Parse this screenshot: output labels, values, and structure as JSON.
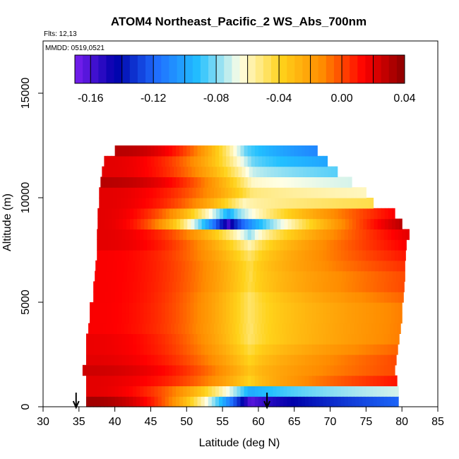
{
  "chart_data": {
    "type": "heatmap",
    "title": "ATOM4 Northeast_Pacific_2 WS_Abs_700nm",
    "annotations": {
      "flights": "Flts: 12,13",
      "dates": "MMDD: 0519,0521"
    },
    "xlabel": "Latitude (deg N)",
    "ylabel": "Altitude (m)",
    "xlim": [
      30,
      85
    ],
    "ylim": [
      0,
      17500
    ],
    "x_ticks": [
      "30",
      "35",
      "40",
      "45",
      "50",
      "55",
      "60",
      "65",
      "70",
      "75",
      "80",
      "85"
    ],
    "y_ticks": [
      "0",
      "5000",
      "10000",
      "15000"
    ],
    "colorbar": {
      "vmin": -0.17,
      "vmax": 0.04,
      "ticks": [
        "-0.16",
        "-0.12",
        "-0.08",
        "-0.04",
        "0.00",
        "0.04"
      ],
      "colors": [
        "#7a1ff0",
        "#0000aa",
        "#1f6fff",
        "#22c0ff",
        "#ffffe6",
        "#ffd21a",
        "#ff8c00",
        "#ff0000",
        "#8b0000"
      ]
    },
    "profile_markers": [
      {
        "latitude": 34.6,
        "label": "arrow"
      },
      {
        "latitude": 61.2,
        "label": "arrow"
      }
    ],
    "altitude_layers": [
      {
        "altitude": 250,
        "lat_start": 36,
        "lat_end": 79.5,
        "left_value": 0.035,
        "center_lat": 59,
        "center_value": -0.165,
        "right_value": -0.12
      },
      {
        "altitude": 750,
        "lat_start": 36,
        "lat_end": 79.5,
        "left_value": 0.02,
        "center_lat": 59,
        "center_value": -0.1,
        "right_value": -0.07
      },
      {
        "altitude": 1250,
        "lat_start": 36,
        "lat_end": 79.3,
        "left_value": 0.02,
        "center_lat": 59,
        "center_value": -0.04,
        "right_value": 0.01
      },
      {
        "altitude": 1750,
        "lat_start": 35.5,
        "lat_end": 79.0,
        "left_value": 0.025,
        "center_lat": 59,
        "center_value": -0.035,
        "right_value": 0.0
      },
      {
        "altitude": 2250,
        "lat_start": 36,
        "lat_end": 79.2,
        "left_value": 0.02,
        "center_lat": 59,
        "center_value": -0.04,
        "right_value": 0.0
      },
      {
        "altitude": 2750,
        "lat_start": 36,
        "lat_end": 79.4,
        "left_value": 0.018,
        "center_lat": 59,
        "center_value": -0.045,
        "right_value": -0.005
      },
      {
        "altitude": 3250,
        "lat_start": 36,
        "lat_end": 79.6,
        "left_value": 0.018,
        "center_lat": 59,
        "center_value": -0.05,
        "right_value": -0.01
      },
      {
        "altitude": 3750,
        "lat_start": 36.3,
        "lat_end": 79.8,
        "left_value": 0.015,
        "center_lat": 59,
        "center_value": -0.05,
        "right_value": -0.01
      },
      {
        "altitude": 4250,
        "lat_start": 36.5,
        "lat_end": 80.0,
        "left_value": 0.015,
        "center_lat": 59,
        "center_value": -0.05,
        "right_value": -0.01
      },
      {
        "altitude": 4750,
        "lat_start": 36.5,
        "lat_end": 80.0,
        "left_value": 0.015,
        "center_lat": 59,
        "center_value": -0.05,
        "right_value": -0.01
      },
      {
        "altitude": 5250,
        "lat_start": 37,
        "lat_end": 80.2,
        "left_value": 0.015,
        "center_lat": 59,
        "center_value": -0.05,
        "right_value": -0.005
      },
      {
        "altitude": 5750,
        "lat_start": 37,
        "lat_end": 80.3,
        "left_value": 0.015,
        "center_lat": 59,
        "center_value": -0.045,
        "right_value": 0.0
      },
      {
        "altitude": 6250,
        "lat_start": 37.2,
        "lat_end": 80.4,
        "left_value": 0.015,
        "center_lat": 59,
        "center_value": -0.045,
        "right_value": 0.0
      },
      {
        "altitude": 6750,
        "lat_start": 37.3,
        "lat_end": 80.4,
        "left_value": 0.015,
        "center_lat": 59,
        "center_value": -0.045,
        "right_value": 0.005
      },
      {
        "altitude": 7250,
        "lat_start": 37.5,
        "lat_end": 80.5,
        "left_value": 0.015,
        "center_lat": 59,
        "center_value": -0.05,
        "right_value": 0.01
      },
      {
        "altitude": 7750,
        "lat_start": 37.5,
        "lat_end": 80.6,
        "left_value": 0.02,
        "center_lat": 59,
        "center_value": -0.06,
        "right_value": 0.015
      },
      {
        "altitude": 8250,
        "lat_start": 37.5,
        "lat_end": 81.0,
        "left_value": 0.02,
        "center_lat": 59,
        "center_value": -0.08,
        "right_value": 0.02
      },
      {
        "altitude": 8750,
        "lat_start": 37.6,
        "lat_end": 80.0,
        "left_value": 0.02,
        "center_lat": 56,
        "center_value": -0.16,
        "right_value": 0.03
      },
      {
        "altitude": 9250,
        "lat_start": 37.6,
        "lat_end": 79.0,
        "left_value": 0.02,
        "center_lat": 56,
        "center_value": -0.1,
        "right_value": 0.015
      },
      {
        "altitude": 9750,
        "lat_start": 37.8,
        "lat_end": 76.0,
        "left_value": 0.02,
        "center_lat": 58,
        "center_value": -0.06,
        "right_value": -0.045
      },
      {
        "altitude": 10250,
        "lat_start": 37.8,
        "lat_end": 75.0,
        "left_value": 0.02,
        "center_lat": 59,
        "center_value": -0.05,
        "right_value": -0.06
      },
      {
        "altitude": 10750,
        "lat_start": 38.0,
        "lat_end": 73.0,
        "left_value": 0.03,
        "center_lat": 59,
        "center_value": -0.06,
        "right_value": -0.07
      },
      {
        "altitude": 11250,
        "lat_start": 38.2,
        "lat_end": 71.0,
        "left_value": 0.02,
        "center_lat": 59,
        "center_value": -0.07,
        "right_value": -0.085
      },
      {
        "altitude": 11750,
        "lat_start": 38.5,
        "lat_end": 69.6,
        "left_value": 0.02,
        "center_lat": 59,
        "center_value": -0.08,
        "right_value": -0.1
      },
      {
        "altitude": 12250,
        "lat_start": 40.0,
        "lat_end": 68.2,
        "left_value": 0.03,
        "center_lat": 58,
        "center_value": -0.08,
        "right_value": -0.11
      }
    ],
    "grid": false,
    "legend": "colorbar-top-inside"
  }
}
